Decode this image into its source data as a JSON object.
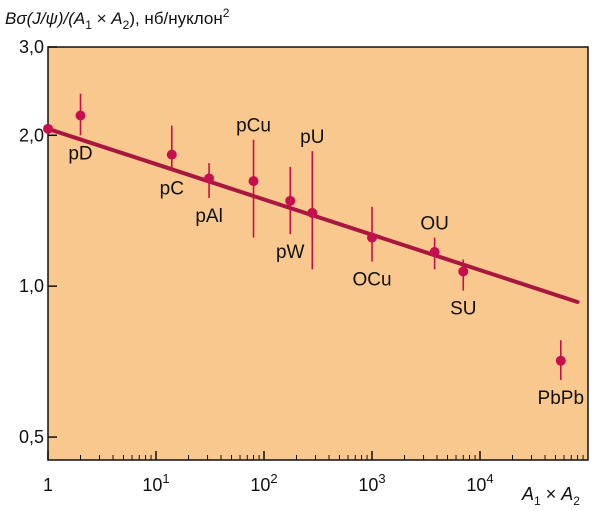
{
  "colors": {
    "plot_background": "#f9c88e",
    "data_and_fit": "#c80f4e",
    "fit_line": "#a8173f",
    "axes": "#111111"
  },
  "chart_data": {
    "type": "scatter",
    "title": "",
    "ylabel_parts": [
      "Bσ(J/ψ)/(",
      "A",
      "1",
      " × ",
      "A",
      "2",
      "), нб/нуклон",
      "2"
    ],
    "xlabel_parts": [
      "A",
      "1",
      " × ",
      "A",
      "2"
    ],
    "x_scale": "log",
    "y_scale": "log",
    "xlim": [
      1,
      100000
    ],
    "ylim": [
      0.45,
      3.0
    ],
    "x_ticks": [
      {
        "value": 1,
        "base": "1",
        "exp": ""
      },
      {
        "value": 10,
        "base": "10",
        "exp": "1"
      },
      {
        "value": 100,
        "base": "10",
        "exp": "2"
      },
      {
        "value": 1000,
        "base": "10",
        "exp": "3"
      },
      {
        "value": 10000,
        "base": "10",
        "exp": "4"
      }
    ],
    "y_ticks": [
      {
        "value": 3.0,
        "label": "3,0"
      },
      {
        "value": 2.0,
        "label": "2,0"
      },
      {
        "value": 1.0,
        "label": "1,0"
      },
      {
        "value": 0.5,
        "label": "0,5"
      }
    ],
    "points": [
      {
        "label": "",
        "x": 1,
        "y": 2.06,
        "ylo": 2.06,
        "yhi": 2.06,
        "label_pos": "below"
      },
      {
        "label": "pD",
        "x": 2,
        "y": 2.19,
        "ylo": 2.0,
        "yhi": 2.42,
        "label_pos": "below"
      },
      {
        "label": "pC",
        "x": 14,
        "y": 1.83,
        "ylo": 1.7,
        "yhi": 2.09,
        "label_pos": "below"
      },
      {
        "label": "pAl",
        "x": 31,
        "y": 1.64,
        "ylo": 1.5,
        "yhi": 1.76,
        "label_pos": "below"
      },
      {
        "label": "pCu",
        "x": 80,
        "y": 1.62,
        "ylo": 1.25,
        "yhi": 1.96,
        "label_pos": "above"
      },
      {
        "label": "pW",
        "x": 175,
        "y": 1.48,
        "ylo": 1.27,
        "yhi": 1.73,
        "label_pos": "below"
      },
      {
        "label": "pU",
        "x": 280,
        "y": 1.4,
        "ylo": 1.08,
        "yhi": 1.86,
        "label_pos": "above"
      },
      {
        "label": "OCu",
        "x": 1000,
        "y": 1.25,
        "ylo": 1.12,
        "yhi": 1.44,
        "label_pos": "below"
      },
      {
        "label": "OU",
        "x": 3800,
        "y": 1.17,
        "ylo": 1.08,
        "yhi": 1.25,
        "label_pos": "above"
      },
      {
        "label": "SU",
        "x": 7000,
        "y": 1.07,
        "ylo": 0.98,
        "yhi": 1.13,
        "label_pos": "below"
      },
      {
        "label": "PbPb",
        "x": 56000,
        "y": 0.71,
        "ylo": 0.65,
        "yhi": 0.78,
        "label_pos": "below"
      }
    ],
    "fit_line": {
      "x": [
        1,
        80000
      ],
      "y": [
        2.06,
        0.93
      ]
    },
    "grid": false,
    "legend": "none"
  }
}
